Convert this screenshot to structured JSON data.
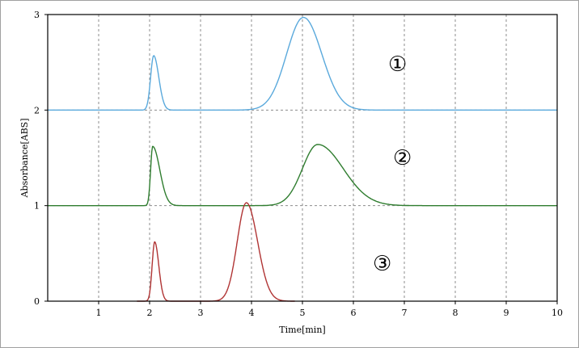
{
  "chart_data": {
    "type": "line",
    "xlabel": "Time[min]",
    "ylabel": "Absorbance[ABS]",
    "xlim": [
      0,
      10
    ],
    "ylim": [
      0,
      3
    ],
    "xticks": [
      1,
      2,
      3,
      4,
      5,
      6,
      7,
      8,
      9,
      10
    ],
    "yticks": [
      0,
      1,
      2,
      3
    ],
    "grid": true,
    "grid_style": "dashed",
    "series": [
      {
        "label": "①",
        "color": "#5aa9dc",
        "baseline": 2.0,
        "x_start": 0,
        "x_end": 10,
        "peaks": [
          {
            "rt": 2.08,
            "height": 0.57,
            "w_front": 0.06,
            "w_back": 0.1
          },
          {
            "rt": 5.02,
            "height": 0.97,
            "w_front": 0.33,
            "w_back": 0.36
          }
        ]
      },
      {
        "label": "②",
        "color": "#2f7d2f",
        "baseline": 1.0,
        "x_start": 0,
        "x_end": 10,
        "peaks": [
          {
            "rt": 2.06,
            "height": 0.62,
            "w_front": 0.04,
            "w_back": 0.14
          },
          {
            "rt": 5.3,
            "height": 0.64,
            "w_front": 0.3,
            "w_back": 0.5
          }
        ]
      },
      {
        "label": "③",
        "color": "#b03434",
        "baseline": 0.0,
        "x_start": 1.75,
        "x_end": 4.85,
        "peaks": [
          {
            "rt": 2.1,
            "height": 0.62,
            "w_front": 0.05,
            "w_back": 0.08
          },
          {
            "rt": 3.9,
            "height": 1.03,
            "w_front": 0.18,
            "w_back": 0.22
          }
        ]
      }
    ],
    "annotations": [
      "①",
      "②",
      "③"
    ]
  }
}
